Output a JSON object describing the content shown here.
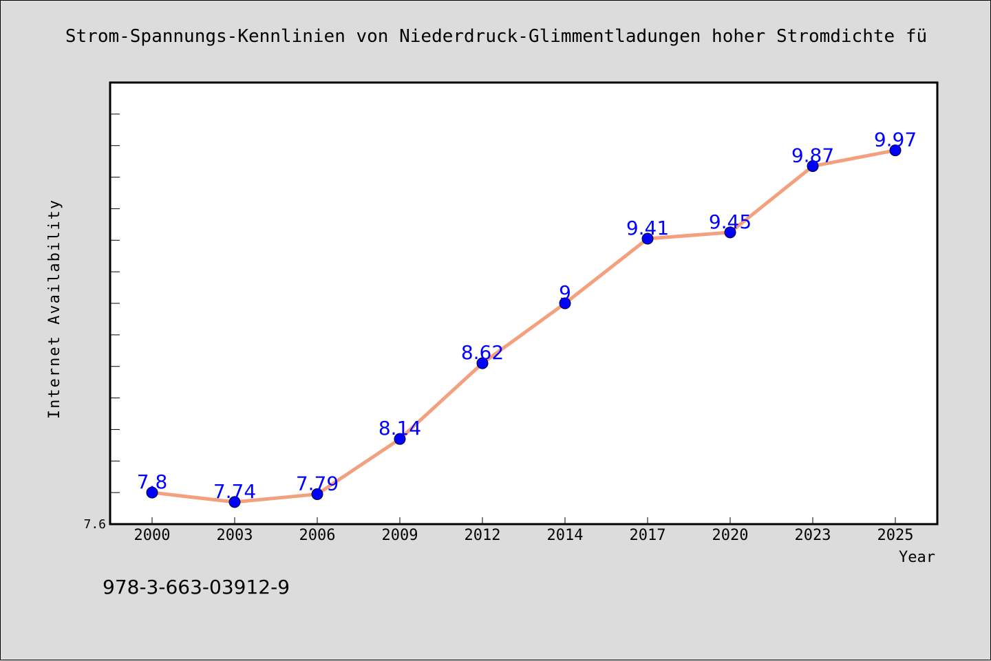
{
  "page": {
    "background": "#dcdcdc",
    "isbn": "978-3-663-03912-9"
  },
  "chart_data": {
    "type": "line",
    "title": "Strom-Spannungs-Kennlinien von Niederdruck-Glimmentladungen hoher Stromdichte fü",
    "xlabel": "Year",
    "ylabel": "Internet Availability",
    "categories": [
      "2000",
      "2003",
      "2006",
      "2009",
      "2012",
      "2014",
      "2017",
      "2020",
      "2023",
      "2025"
    ],
    "series": [
      {
        "values": [
          7.8,
          7.74,
          7.79,
          8.14,
          8.62,
          9.0,
          9.41,
          9.45,
          9.87,
          9.97
        ],
        "data_labels": [
          "7.8",
          "7.74",
          "7.79",
          "8.14",
          "8.62",
          "9",
          "9.41",
          "9.45",
          "9.87",
          "9.97"
        ],
        "line_color": "#f4a07e",
        "marker_color": "#0000ff",
        "label_color": "#0000ff"
      }
    ],
    "ylim": [
      7.6,
      10.4
    ],
    "y_tick_labels": [
      "7.6"
    ],
    "grid": false,
    "legend": "none",
    "plot_background": "#ffffff"
  }
}
